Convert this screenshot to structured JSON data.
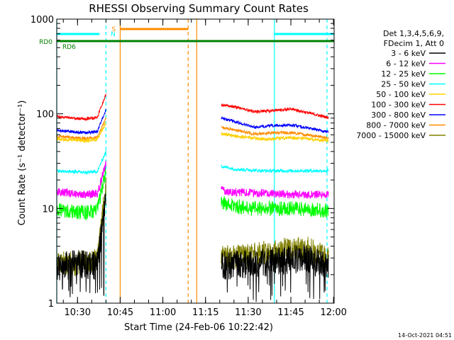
{
  "chart_data": {
    "type": "line",
    "title": "RHESSI Observing Summary Count Rates",
    "xlabel": "Start Time (24-Feb-06 10:22:42)",
    "ylabel": "Count Rate (s⁻¹ detector⁻¹)",
    "yscale": "log",
    "ylim": [
      1,
      1000
    ],
    "xlim_minutes": [
      0,
      97.5
    ],
    "x_ticks": [
      {
        "label": "10:30",
        "minutes": 7.3
      },
      {
        "label": "10:45",
        "minutes": 22.3
      },
      {
        "label": "11:00",
        "minutes": 37.3
      },
      {
        "label": "11:15",
        "minutes": 52.3
      },
      {
        "label": "11:30",
        "minutes": 67.3
      },
      {
        "label": "11:45",
        "minutes": 82.3
      },
      {
        "label": "12:00",
        "minutes": 97.3
      }
    ],
    "y_ticks": [
      {
        "label": "1",
        "value": 1
      },
      {
        "label": "10",
        "value": 10
      },
      {
        "label": "100",
        "value": 100
      },
      {
        "label": "1000",
        "value": 1000
      }
    ],
    "legend_title": [
      "Det 1,3,4,5,6,9,",
      "FDecim 1, Att 0"
    ],
    "legend_position": "top-right",
    "series": [
      {
        "name": "3 - 6 keV",
        "color": "#000000",
        "pre": [
          [
            0,
            2.4
          ],
          [
            7,
            2.6
          ],
          [
            14,
            2.5
          ],
          [
            17,
            2.7
          ]
        ],
        "spike": 15,
        "post": [
          [
            0,
            2.5
          ],
          [
            10,
            2.6
          ],
          [
            20,
            2.8
          ],
          [
            30,
            3.0
          ],
          [
            37,
            2.4
          ]
        ],
        "noise": 0.35,
        "dropouts": true
      },
      {
        "name": "6 - 12 keV",
        "color": "#ff00ff",
        "pre": [
          [
            0,
            15
          ],
          [
            10,
            14
          ],
          [
            17,
            14.5
          ]
        ],
        "spike": 30,
        "post": [
          [
            0,
            16
          ],
          [
            2,
            15
          ],
          [
            15,
            14.5
          ],
          [
            25,
            14
          ],
          [
            37,
            14
          ]
        ],
        "noise": 0.1
      },
      {
        "name": "12 - 25 keV",
        "color": "#00ff00",
        "pre": [
          [
            0,
            9.5
          ],
          [
            10,
            9
          ],
          [
            17,
            10
          ]
        ],
        "spike": 25,
        "post": [
          [
            0,
            12
          ],
          [
            2,
            11
          ],
          [
            10,
            10
          ],
          [
            25,
            10
          ],
          [
            37,
            9.5
          ]
        ],
        "noise": 0.18
      },
      {
        "name": "25 - 50 keV",
        "color": "#00ffff",
        "pre": [
          [
            0,
            25
          ],
          [
            10,
            24
          ],
          [
            17,
            25
          ]
        ],
        "spike": 40,
        "post": [
          [
            0,
            28
          ],
          [
            5,
            26
          ],
          [
            15,
            25
          ],
          [
            25,
            25
          ],
          [
            37,
            25
          ]
        ],
        "noise": 0.04
      },
      {
        "name": "50 - 100 keV",
        "color": "#ffd000",
        "pre": [
          [
            0,
            54
          ],
          [
            10,
            52
          ],
          [
            17,
            55
          ]
        ],
        "spike": 80,
        "post": [
          [
            0,
            62
          ],
          [
            5,
            58
          ],
          [
            15,
            54
          ],
          [
            25,
            56
          ],
          [
            37,
            52
          ]
        ],
        "noise": 0.04
      },
      {
        "name": "100 - 300 keV",
        "color": "#ff0000",
        "pre": [
          [
            0,
            93
          ],
          [
            10,
            88
          ],
          [
            17,
            95
          ]
        ],
        "spike": 160,
        "post": [
          [
            0,
            125
          ],
          [
            5,
            118
          ],
          [
            12,
            105
          ],
          [
            18,
            108
          ],
          [
            25,
            112
          ],
          [
            37,
            92
          ]
        ],
        "noise": 0.035
      },
      {
        "name": "300 - 800 keV",
        "color": "#0000ff",
        "pre": [
          [
            0,
            67
          ],
          [
            10,
            63
          ],
          [
            17,
            66
          ]
        ],
        "spike": 110,
        "post": [
          [
            0,
            90
          ],
          [
            5,
            82
          ],
          [
            12,
            72
          ],
          [
            18,
            75
          ],
          [
            25,
            76
          ],
          [
            37,
            65
          ]
        ],
        "noise": 0.035
      },
      {
        "name": "800 - 7000 keV",
        "color": "#ff8c00",
        "pre": [
          [
            0,
            58
          ],
          [
            10,
            55
          ],
          [
            17,
            57
          ]
        ],
        "spike": 90,
        "post": [
          [
            0,
            72
          ],
          [
            5,
            67
          ],
          [
            12,
            61
          ],
          [
            18,
            63
          ],
          [
            25,
            63
          ],
          [
            37,
            56
          ]
        ],
        "noise": 0.035
      },
      {
        "name": "7000 - 15000 keV",
        "color": "#808000",
        "pre": [
          [
            0,
            2.7
          ],
          [
            7,
            2.6
          ],
          [
            14,
            2.8
          ],
          [
            17,
            2.7
          ]
        ],
        "spike": 18,
        "post": [
          [
            0,
            3.0
          ],
          [
            10,
            3.2
          ],
          [
            20,
            3.6
          ],
          [
            30,
            3.8
          ],
          [
            37,
            3.0
          ]
        ],
        "noise": 0.3
      }
    ],
    "segments": {
      "pre_start_minutes": 0,
      "pre_end_minutes": 17.3,
      "post_start_minutes": 57.8,
      "post_end_minutes": 95.5
    },
    "status_bars": [
      {
        "label": "RD0",
        "color": "#008000",
        "from_minutes": 0,
        "to_minutes": 97.5
      },
      {
        "label": "S",
        "color": "#ff8c00",
        "from_minutes": 22.3,
        "to_minutes": 46.2
      },
      {
        "label": "",
        "color": "#00ffff",
        "from_minutes": 0,
        "to_minutes": 15.0
      },
      {
        "label": "",
        "color": "#00ffff",
        "from_minutes": 76.5,
        "to_minutes": 97.5
      }
    ],
    "flag_labels": [
      {
        "text": "RD6",
        "color": "#008000"
      },
      {
        "text": "N",
        "color": "#00ffff"
      }
    ],
    "vlines": [
      {
        "minutes": 0,
        "color": "#00ffff",
        "style": "solid"
      },
      {
        "minutes": 17.3,
        "color": "#00ffff",
        "style": "dashed"
      },
      {
        "minutes": 22.3,
        "color": "#ff8c00",
        "style": "solid"
      },
      {
        "minutes": 46.2,
        "color": "#ff8c00",
        "style": "dashed"
      },
      {
        "minutes": 49.2,
        "color": "#ff8c00",
        "style": "solid"
      },
      {
        "minutes": 76.5,
        "color": "#00ffff",
        "style": "solid"
      },
      {
        "minutes": 95.0,
        "color": "#00ffff",
        "style": "dashed"
      }
    ],
    "footer_date": "14-Oct-2021 04:51"
  }
}
